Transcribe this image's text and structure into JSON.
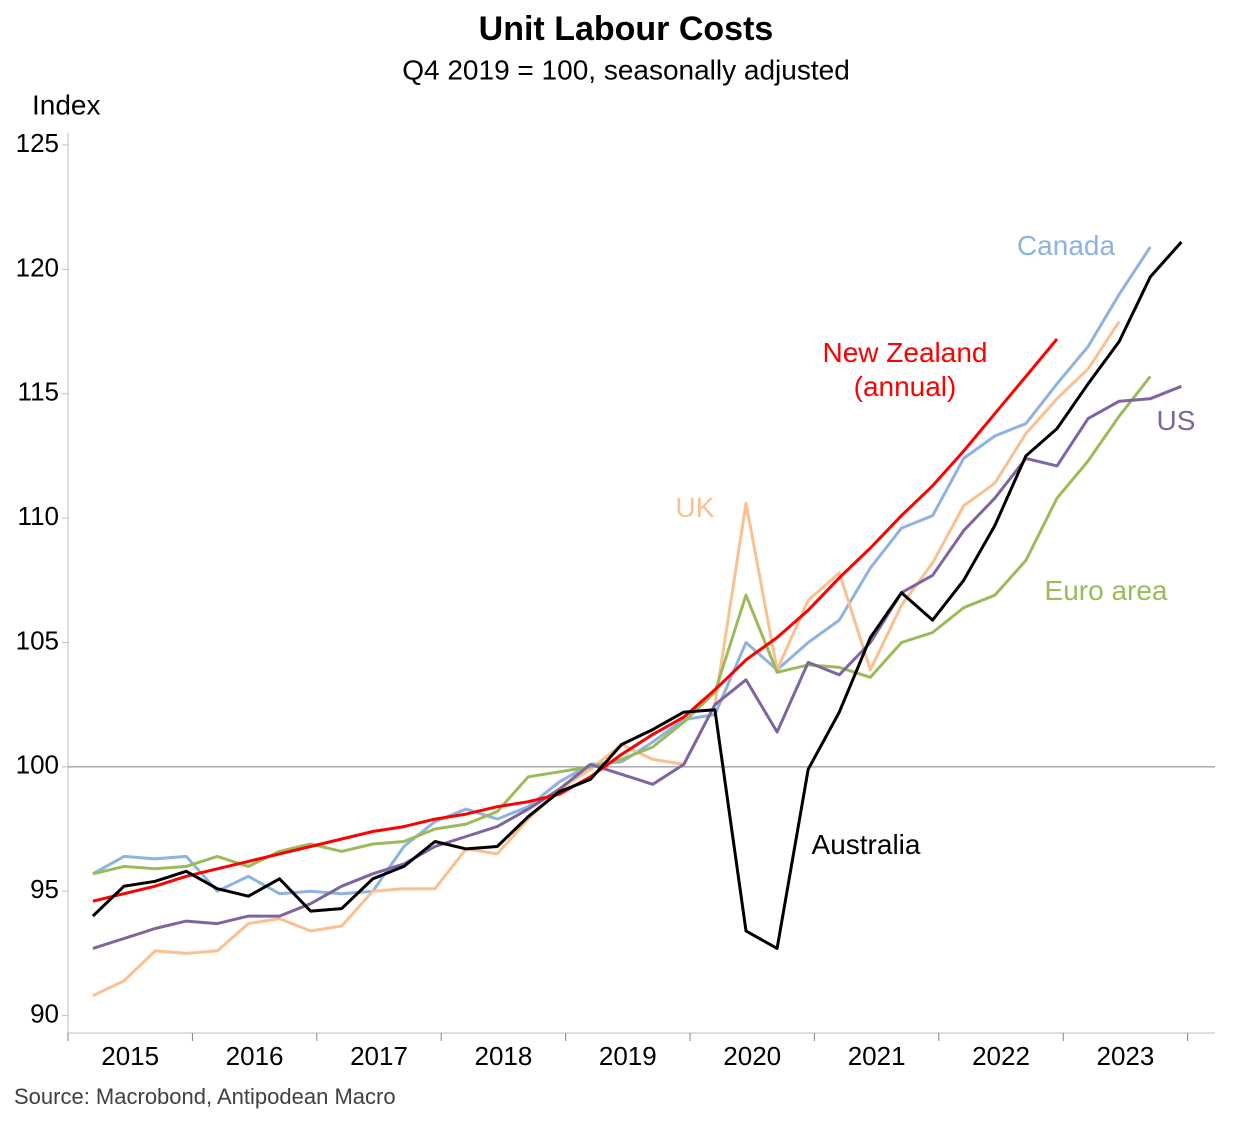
{
  "chart_data": {
    "type": "line",
    "title": "Unit Labour Costs",
    "subtitle": "Q4 2019 = 100, seasonally adjusted",
    "ylabel": "Index",
    "source": "Source: Macrobond, Antipodean Macro",
    "xlim": [
      2015,
      2024.22
    ],
    "xticks": [
      2015,
      2016,
      2017,
      2018,
      2019,
      2020,
      2021,
      2022,
      2023
    ],
    "ylim": [
      89.3,
      125.5
    ],
    "yticks": [
      90,
      95,
      100,
      105,
      110,
      115,
      120,
      125
    ],
    "hline": 100,
    "x": [
      2015.2,
      2015.45,
      2015.7,
      2015.95,
      2016.2,
      2016.45,
      2016.7,
      2016.95,
      2017.2,
      2017.45,
      2017.7,
      2017.95,
      2018.2,
      2018.45,
      2018.7,
      2018.95,
      2019.2,
      2019.45,
      2019.7,
      2019.95,
      2020.2,
      2020.45,
      2020.7,
      2020.95,
      2021.2,
      2021.45,
      2021.7,
      2021.95,
      2022.2,
      2022.45,
      2022.7,
      2022.95,
      2023.2,
      2023.45,
      2023.7,
      2023.95
    ],
    "series": [
      {
        "name": "Canada",
        "color": "#8db3e2",
        "values": [
          95.7,
          96.4,
          96.3,
          96.4,
          95.0,
          95.6,
          94.9,
          95.0,
          94.9,
          95.0,
          96.8,
          97.8,
          98.3,
          97.9,
          98.4,
          99.4,
          100.1,
          100.2,
          101.0,
          101.9,
          102.1,
          105.0,
          103.9,
          105.0,
          105.9,
          108.0,
          109.6,
          110.1,
          112.4,
          113.3,
          113.8,
          115.4,
          116.9,
          119.0,
          120.9,
          null
        ]
      },
      {
        "name": "UK",
        "color": "#fac090",
        "values": [
          90.8,
          91.4,
          92.6,
          92.5,
          92.6,
          93.7,
          93.9,
          93.4,
          93.6,
          95.0,
          95.1,
          95.1,
          96.7,
          96.5,
          97.9,
          99.1,
          99.9,
          100.9,
          100.3,
          100.1,
          102.5,
          110.6,
          103.9,
          106.7,
          107.8,
          103.9,
          106.5,
          108.2,
          110.5,
          111.4,
          113.4,
          114.8,
          116.0,
          117.9,
          null,
          null
        ]
      },
      {
        "name": "Euro area",
        "color": "#9bbb59",
        "values": [
          95.7,
          96.0,
          95.9,
          96.0,
          96.4,
          96.0,
          96.6,
          96.9,
          96.6,
          96.9,
          97.0,
          97.5,
          97.7,
          98.2,
          99.6,
          99.8,
          100.0,
          100.3,
          100.8,
          101.8,
          103.0,
          106.9,
          103.8,
          104.1,
          104.0,
          103.6,
          105.0,
          105.4,
          106.4,
          106.9,
          108.3,
          110.8,
          112.3,
          114.1,
          115.7,
          null
        ]
      },
      {
        "name": "US",
        "color": "#8064a2",
        "values": [
          92.7,
          93.1,
          93.5,
          93.8,
          93.7,
          94.0,
          94.0,
          94.5,
          95.2,
          95.7,
          96.1,
          96.8,
          97.2,
          97.6,
          98.3,
          99.1,
          100.1,
          99.7,
          99.3,
          100.1,
          102.5,
          103.5,
          101.4,
          104.2,
          103.7,
          105.0,
          107.0,
          107.7,
          109.5,
          110.8,
          112.4,
          112.1,
          114.0,
          114.7,
          114.8,
          115.3
        ]
      },
      {
        "name": "New Zealand (annual)",
        "color": "#ff0000",
        "values": [
          94.6,
          94.9,
          95.2,
          95.6,
          95.9,
          96.2,
          96.5,
          96.8,
          97.1,
          97.4,
          97.6,
          97.9,
          98.1,
          98.4,
          98.6,
          98.9,
          99.6,
          100.5,
          101.3,
          102.0,
          103.1,
          104.3,
          105.2,
          106.3,
          107.6,
          108.8,
          110.1,
          111.3,
          112.7,
          114.2,
          115.7,
          117.2,
          null,
          null,
          null,
          null
        ]
      },
      {
        "name": "Australia",
        "color": "#000000",
        "values": [
          94.0,
          95.2,
          95.4,
          95.8,
          95.1,
          94.8,
          95.5,
          94.2,
          94.3,
          95.5,
          96.0,
          97.0,
          96.7,
          96.8,
          98.0,
          99.0,
          99.5,
          100.9,
          101.5,
          102.2,
          102.3,
          93.4,
          92.7,
          99.9,
          102.2,
          105.2,
          107.0,
          105.9,
          107.5,
          109.7,
          112.5,
          113.6,
          115.4,
          117.1,
          119.7,
          121.1
        ]
      }
    ]
  }
}
